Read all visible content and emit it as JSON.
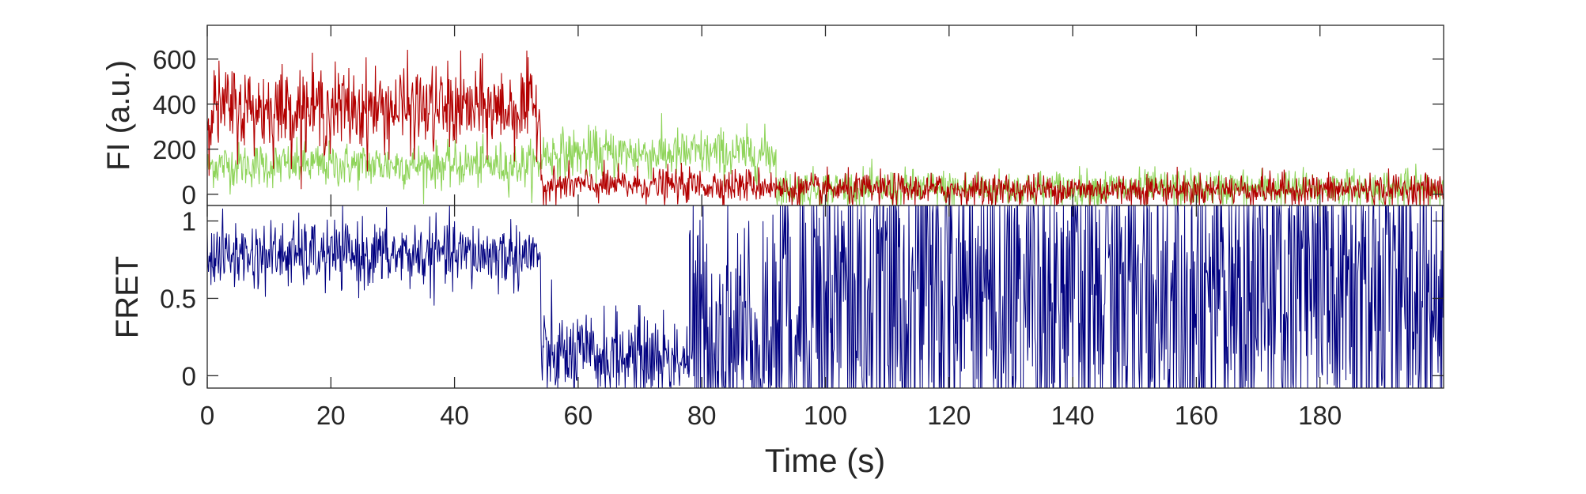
{
  "chart_data": [
    {
      "type": "line",
      "ylabel": "FI (a.u.)",
      "xlabel": "",
      "xlim": [
        0,
        200
      ],
      "ylim": [
        -50,
        750
      ],
      "xticks": [
        0,
        20,
        40,
        60,
        80,
        100,
        120,
        140,
        160,
        180
      ],
      "yticks": [
        0,
        200,
        400,
        600
      ],
      "yticklabels": [
        "0",
        "200",
        "400",
        "600"
      ],
      "grid": false,
      "series": [
        {
          "color": "#8fd45a",
          "segments": [
            {
              "x0": 0,
              "x1": 54,
              "mean": 130,
              "sd": 50
            },
            {
              "x0": 54,
              "x1": 92,
              "mean": 180,
              "sd": 55
            },
            {
              "x0": 92,
              "x1": 200,
              "mean": 25,
              "sd": 42
            }
          ]
        },
        {
          "color": "#b30000",
          "segments": [
            {
              "x0": 0,
              "x1": 54,
              "mean": 380,
              "sd": 95
            },
            {
              "x0": 54,
              "x1": 92,
              "mean": 40,
              "sd": 38
            },
            {
              "x0": 92,
              "x1": 200,
              "mean": 20,
              "sd": 36
            }
          ]
        }
      ]
    },
    {
      "type": "line",
      "ylabel": "FRET",
      "xlabel": "Time (s)",
      "xlim": [
        0,
        200
      ],
      "ylim": [
        -0.08,
        1.1
      ],
      "xticks": [
        0,
        20,
        40,
        60,
        80,
        100,
        120,
        140,
        160,
        180
      ],
      "xticklabels": [
        "0",
        "20",
        "40",
        "60",
        "80",
        "100",
        "120",
        "140",
        "160",
        "180"
      ],
      "yticks": [
        0,
        0.5,
        1
      ],
      "yticklabels": [
        "0",
        "0.5",
        "1"
      ],
      "grid": false,
      "series": [
        {
          "color": "#000080",
          "segments": [
            {
              "x0": 0,
              "x1": 54,
              "mean": 0.78,
              "sd": 0.11
            },
            {
              "x0": 54,
              "x1": 78,
              "mean": 0.12,
              "sd": 0.14
            },
            {
              "x0": 78,
              "x1": 92,
              "mean": 0.25,
              "sd": 0.45
            },
            {
              "x0": 92,
              "x1": 200,
              "mean": 0.5,
              "sd": 0.7
            }
          ]
        }
      ]
    }
  ]
}
